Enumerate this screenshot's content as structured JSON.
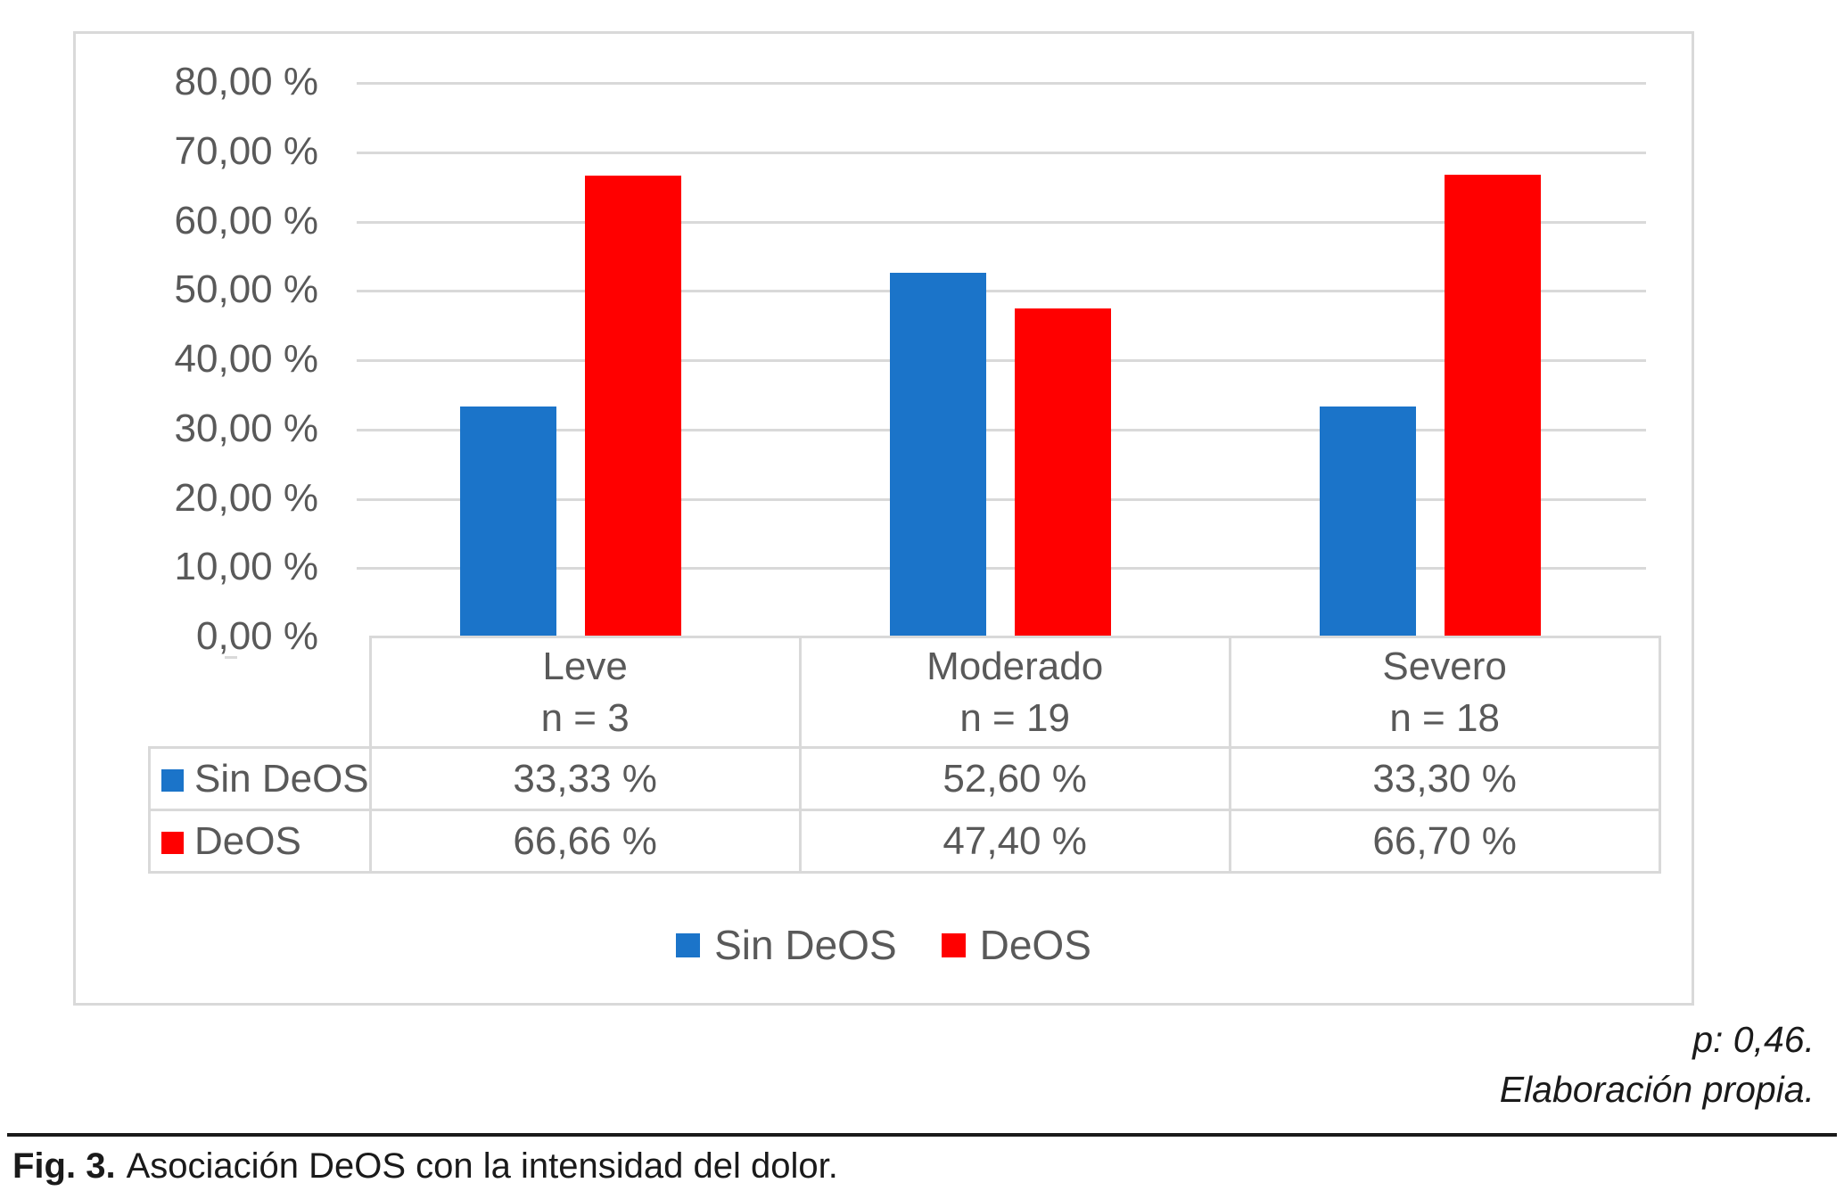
{
  "figure": {
    "p_value_note": "p: 0,46.",
    "source_note": "Elaboración propia.",
    "caption_label": "Fig. 3.",
    "caption_text": "Asociación DeOS con la intensidad del dolor."
  },
  "colors": {
    "sin_deos": "#1b74c9",
    "deos": "#ff0000",
    "grid": "#d9d9d9",
    "chart_text": "#595959"
  },
  "chart_data": {
    "type": "bar",
    "title": "",
    "xlabel": "",
    "ylabel": "",
    "categories": [
      "Leve",
      "Moderado",
      "Severo"
    ],
    "category_sublabels": [
      "n = 3",
      "n = 19",
      "n = 18"
    ],
    "series": [
      {
        "name": "Sin DeOS",
        "color_key": "sin_deos",
        "values": [
          33.33,
          52.6,
          33.3
        ],
        "labels": [
          "33,33 %",
          "52,60 %",
          "33,30 %"
        ]
      },
      {
        "name": "DeOS",
        "color_key": "deos",
        "values": [
          66.66,
          47.4,
          66.7
        ],
        "labels": [
          "66,66 %",
          "47,40 %",
          "66,70 %"
        ]
      }
    ],
    "ylim": [
      0,
      80
    ],
    "yticks": [
      {
        "value": 80,
        "label": "80,00 %"
      },
      {
        "value": 70,
        "label": "70,00 %"
      },
      {
        "value": 60,
        "label": "60,00 %"
      },
      {
        "value": 50,
        "label": "50,00 %"
      },
      {
        "value": 40,
        "label": "40,00 %"
      },
      {
        "value": 30,
        "label": "30,00 %"
      },
      {
        "value": 20,
        "label": "20,00 %"
      },
      {
        "value": 10,
        "label": "10,00 %"
      },
      {
        "value": 0,
        "label": "0,00 %"
      }
    ],
    "grid": true,
    "legend_position": "bottom",
    "data_table": true
  }
}
